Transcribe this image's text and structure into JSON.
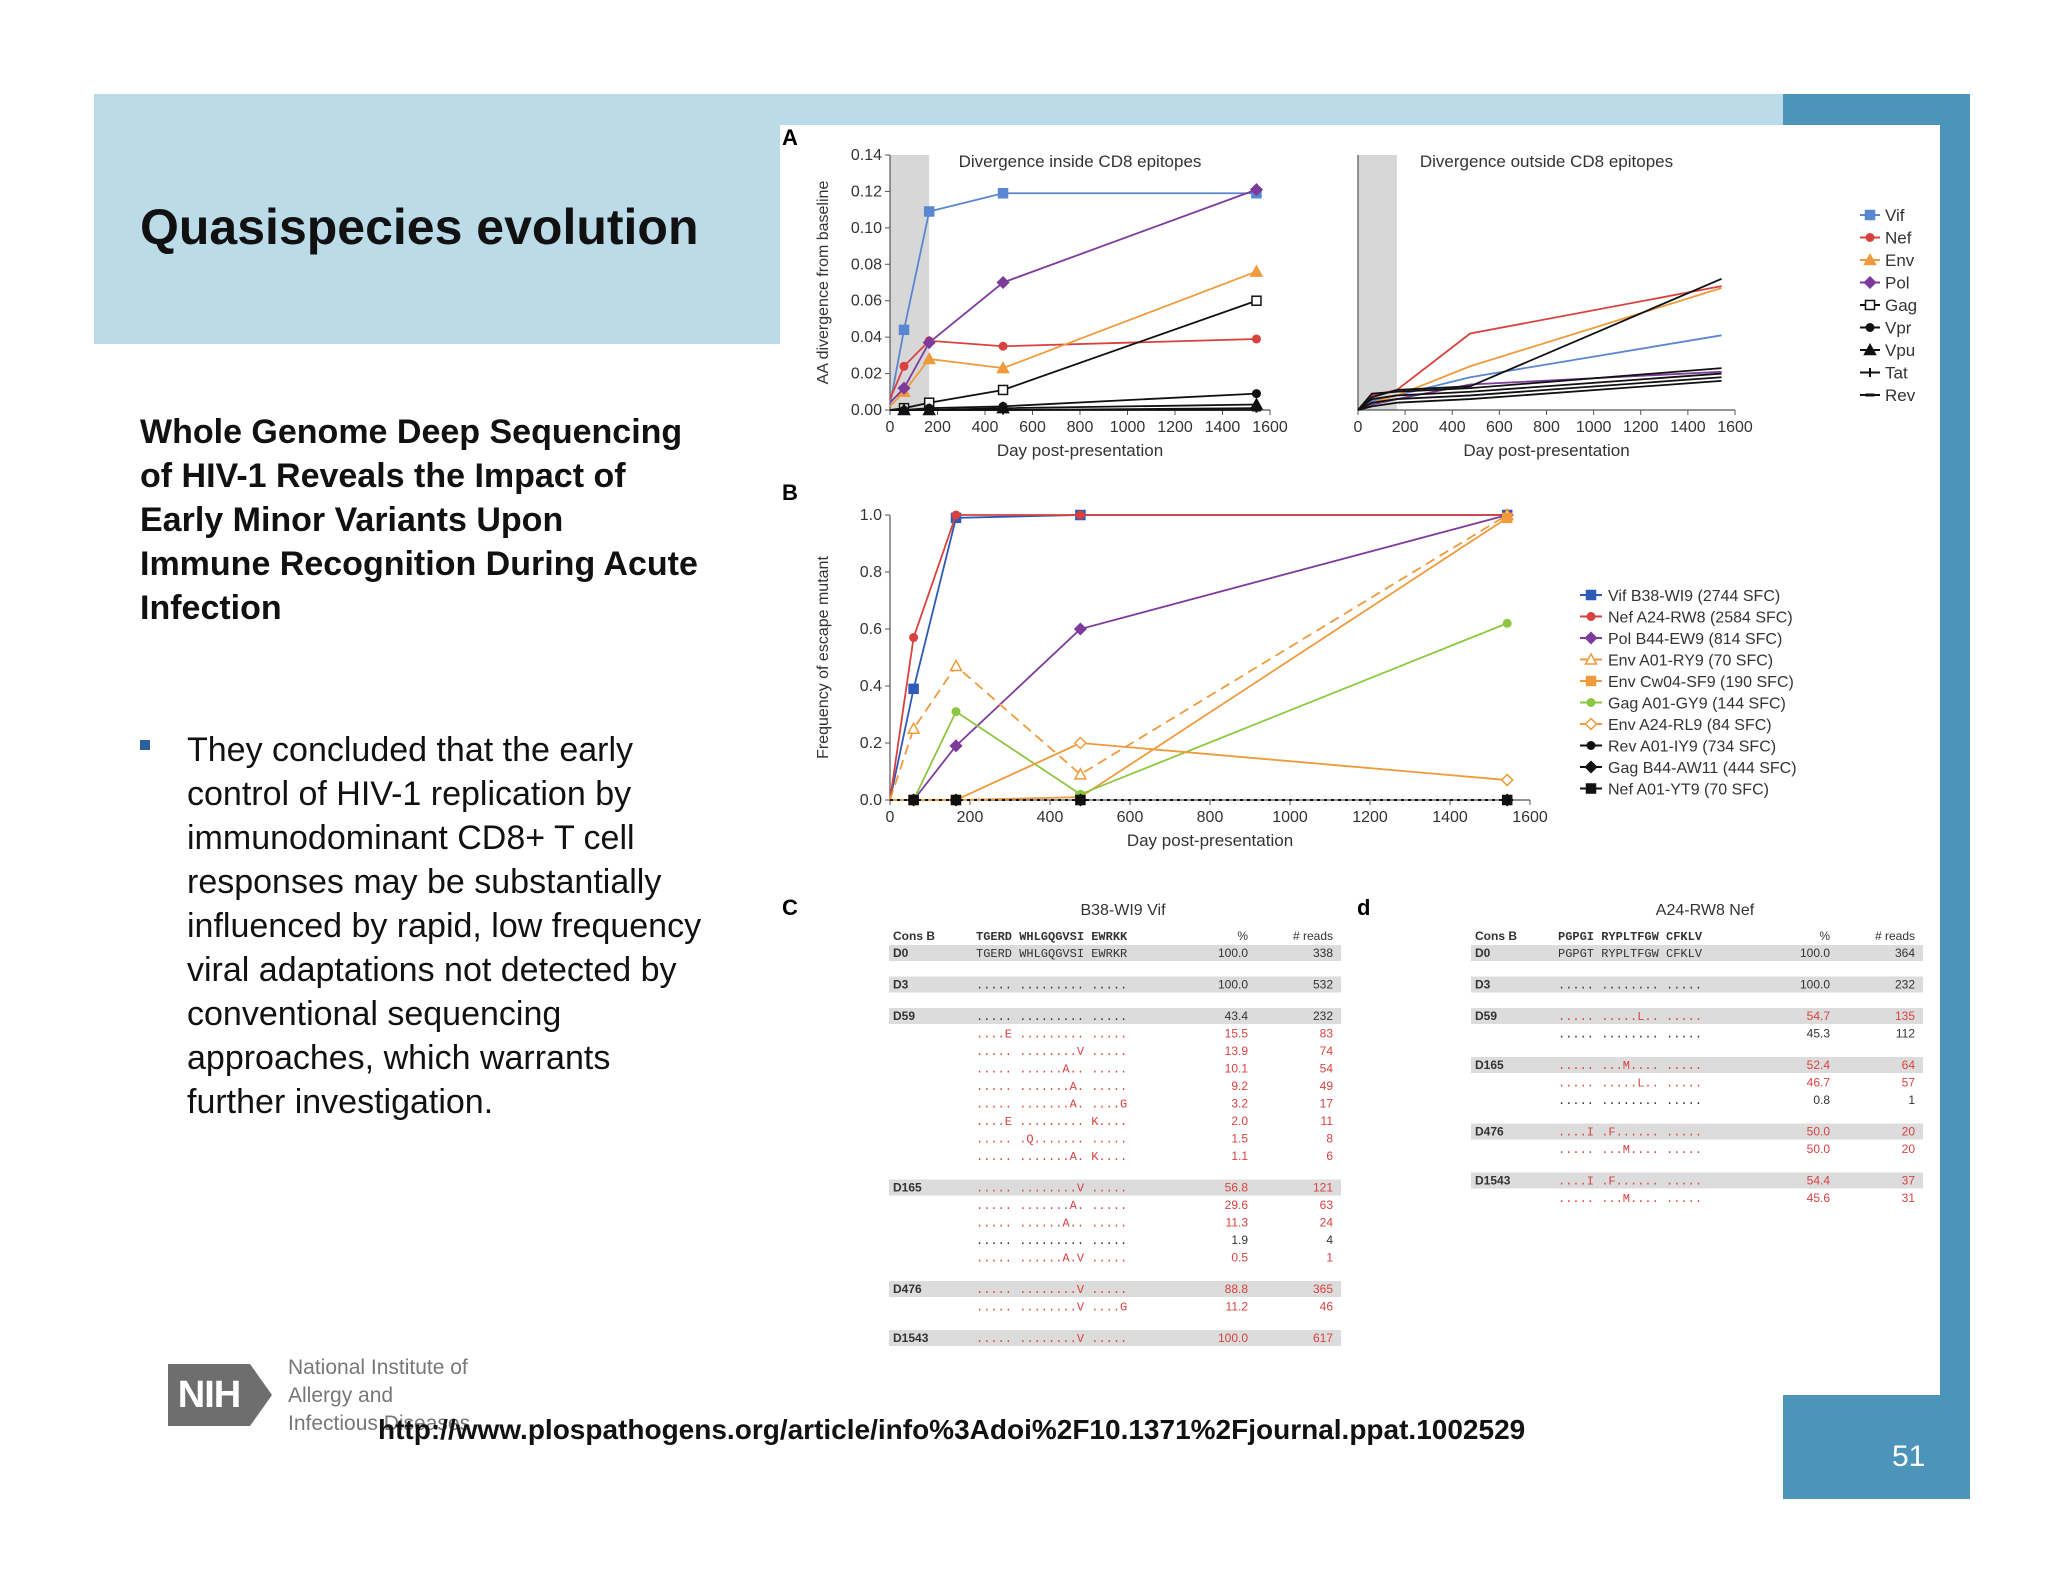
{
  "slide": {
    "title": "Quasispecies evolution",
    "paper_title": "Whole Genome Deep Sequencing of HIV-1 Reveals the Impact of Early Minor Variants Upon Immune Recognition During Acute Infection",
    "bullet": "They concluded that the early control of HIV-1 replication by immunodominant CD8+ T cell responses may be substantially influenced by rapid, low frequency viral adaptations not detected by conventional sequencing approaches, which warrants further investigation.",
    "url": "http://www.plospathogens.org/article/info%3Adoi%2F10.1371%2Fjournal.ppat.1002529",
    "page_number": "51",
    "logo": {
      "mark": "NIH",
      "line1": "National Institute of",
      "line2": "Allergy and",
      "line3": "Infectious Diseases"
    }
  },
  "colors": {
    "title_band": "#bcdbe9",
    "side_bar": "#4d94bb",
    "bullet": "#2a5fa0"
  },
  "chart_data": [
    {
      "panel": "A",
      "type": "line",
      "title": "Divergence inside CD8 epitopes",
      "xlabel": "Day post-presentation",
      "ylabel": "AA divergence from baseline",
      "xlim": [
        0,
        1600
      ],
      "ylim": [
        0,
        0.14
      ],
      "xticks": [
        "0",
        "200",
        "400",
        "600",
        "800",
        "1000",
        "1200",
        "1400",
        "1600"
      ],
      "yticks": [
        "0.00",
        "0.02",
        "0.04",
        "0.06",
        "0.08",
        "0.10",
        "0.12",
        "0.14"
      ],
      "shaded_x": [
        0,
        165
      ],
      "series": [
        {
          "name": "Vif",
          "color": "#5b86d1",
          "marker": "square",
          "x": [
            0,
            59,
            165,
            476,
            1543
          ],
          "y": [
            0.003,
            0.044,
            0.109,
            0.119,
            0.119
          ]
        },
        {
          "name": "Nef",
          "color": "#d9413f",
          "marker": "circle",
          "x": [
            0,
            59,
            165,
            476,
            1543
          ],
          "y": [
            0.006,
            0.024,
            0.038,
            0.035,
            0.039
          ]
        },
        {
          "name": "Env",
          "color": "#ef9a3c",
          "marker": "triangle",
          "x": [
            0,
            59,
            165,
            476,
            1543
          ],
          "y": [
            0.002,
            0.01,
            0.028,
            0.023,
            0.076
          ]
        },
        {
          "name": "Pol",
          "color": "#7d3b9c",
          "marker": "diamond",
          "x": [
            0,
            59,
            165,
            476,
            1543
          ],
          "y": [
            0.004,
            0.012,
            0.037,
            0.07,
            0.121
          ]
        },
        {
          "name": "Gag",
          "color": "#111111",
          "marker": "open-square",
          "x": [
            0,
            59,
            165,
            476,
            1543
          ],
          "y": [
            0,
            0.001,
            0.004,
            0.011,
            0.06
          ]
        },
        {
          "name": "Vpr",
          "color": "#111111",
          "marker": "circle",
          "x": [
            0,
            59,
            165,
            476,
            1543
          ],
          "y": [
            0,
            0,
            0.001,
            0.002,
            0.009
          ]
        },
        {
          "name": "Vpu",
          "color": "#111111",
          "marker": "triangle",
          "x": [
            0,
            59,
            165,
            476,
            1543
          ],
          "y": [
            0,
            0,
            0,
            0.001,
            0.003
          ]
        },
        {
          "name": "Tat",
          "color": "#111111",
          "marker": "plus",
          "x": [
            0,
            59,
            165,
            476,
            1543
          ],
          "y": [
            0,
            0,
            0,
            0,
            0.001
          ]
        },
        {
          "name": "Rev",
          "color": "#111111",
          "marker": "dash",
          "x": [
            0,
            59,
            165,
            476,
            1543
          ],
          "y": [
            0,
            0,
            0,
            0,
            0
          ]
        }
      ]
    },
    {
      "panel": "A-right",
      "type": "line",
      "title": "Divergence outside CD8 epitopes",
      "xlabel": "Day post-presentation",
      "xlim": [
        0,
        1600
      ],
      "ylim": [
        0,
        0.14
      ],
      "xticks": [
        "0",
        "200",
        "400",
        "600",
        "800",
        "1000",
        "1200",
        "1400",
        "1600"
      ],
      "shaded_x": [
        0,
        165
      ],
      "legend": [
        "Vif",
        "Nef",
        "Env",
        "Pol",
        "Gag",
        "Vpr",
        "Vpu",
        "Tat",
        "Rev"
      ],
      "series": [
        {
          "name": "Vif",
          "color": "#5b86d1",
          "x": [
            0,
            59,
            165,
            476,
            1543
          ],
          "y": [
            0,
            0.005,
            0.008,
            0.018,
            0.041
          ]
        },
        {
          "name": "Nef",
          "color": "#d9413f",
          "x": [
            0,
            59,
            165,
            476,
            1543
          ],
          "y": [
            0,
            0.008,
            0.011,
            0.042,
            0.068
          ]
        },
        {
          "name": "Env",
          "color": "#ef9a3c",
          "x": [
            0,
            59,
            165,
            476,
            1543
          ],
          "y": [
            0,
            0.004,
            0.008,
            0.024,
            0.067
          ]
        },
        {
          "name": "Pol",
          "color": "#7d3b9c",
          "x": [
            0,
            59,
            165,
            476,
            1543
          ],
          "y": [
            0,
            0.003,
            0.006,
            0.014,
            0.021
          ]
        },
        {
          "name": "Gag",
          "color": "#111111",
          "x": [
            0,
            59,
            165,
            476,
            1543
          ],
          "y": [
            0,
            0.007,
            0.011,
            0.013,
            0.072
          ]
        },
        {
          "name": "Vpr",
          "color": "#111111",
          "x": [
            0,
            59,
            165,
            476,
            1543
          ],
          "y": [
            0,
            0.009,
            0.01,
            0.012,
            0.023
          ]
        },
        {
          "name": "Vpu",
          "color": "#111111",
          "x": [
            0,
            59,
            165,
            476,
            1543
          ],
          "y": [
            0,
            0.006,
            0.008,
            0.01,
            0.02
          ]
        },
        {
          "name": "Tat",
          "color": "#111111",
          "x": [
            0,
            59,
            165,
            476,
            1543
          ],
          "y": [
            0,
            0.004,
            0.006,
            0.008,
            0.018
          ]
        },
        {
          "name": "Rev",
          "color": "#111111",
          "x": [
            0,
            59,
            165,
            476,
            1543
          ],
          "y": [
            0,
            0.002,
            0.004,
            0.006,
            0.016
          ]
        }
      ]
    },
    {
      "panel": "B",
      "type": "line",
      "xlabel": "Day post-presentation",
      "ylabel": "Frequency of escape mutant",
      "xlim": [
        0,
        1600
      ],
      "ylim": [
        0,
        1.0
      ],
      "xticks": [
        "0",
        "200",
        "400",
        "600",
        "800",
        "1000",
        "1200",
        "1400",
        "1600"
      ],
      "yticks": [
        "0.0",
        "0.2",
        "0.4",
        "0.6",
        "0.8",
        "1.0"
      ],
      "series": [
        {
          "name": "Vif B38-WI9 (2744 SFC)",
          "color": "#2d5ab8",
          "marker": "square",
          "x": [
            0,
            59,
            165,
            476,
            1543
          ],
          "y": [
            0,
            0.39,
            0.99,
            1.0,
            1.0
          ]
        },
        {
          "name": "Nef A24-RW8 (2584 SFC)",
          "color": "#d9413f",
          "marker": "circle",
          "x": [
            0,
            59,
            165,
            476,
            1543
          ],
          "y": [
            0,
            0.57,
            1.0,
            1.0,
            1.0
          ]
        },
        {
          "name": "Pol B44-EW9 (814 SFC)",
          "color": "#7d3b9c",
          "marker": "diamond",
          "x": [
            0,
            59,
            165,
            476,
            1543
          ],
          "y": [
            0,
            0,
            0.19,
            0.6,
            1.0
          ]
        },
        {
          "name": "Env A01-RY9 (70 SFC)",
          "color": "#ef9a3c",
          "marker": "open-triangle",
          "x": [
            0,
            59,
            165,
            476,
            1543
          ],
          "y": [
            0,
            0.25,
            0.47,
            0.09,
            1.0
          ]
        },
        {
          "name": "Env Cw04-SF9 (190 SFC)",
          "color": "#ef9a3c",
          "marker": "square",
          "x": [
            0,
            59,
            165,
            476,
            1543
          ],
          "y": [
            0,
            0,
            0,
            0.01,
            0.99
          ]
        },
        {
          "name": "Gag A01-GY9 (144 SFC)",
          "color": "#8dc63f",
          "marker": "circle",
          "x": [
            0,
            59,
            165,
            476,
            1543
          ],
          "y": [
            0,
            0,
            0.31,
            0.02,
            0.62
          ]
        },
        {
          "name": "Env A24-RL9 (84 SFC)",
          "color": "#ef9a3c",
          "marker": "open-diamond",
          "x": [
            0,
            59,
            165,
            476,
            1543
          ],
          "y": [
            0,
            0,
            0,
            0.2,
            0.07
          ]
        },
        {
          "name": "Rev A01-IY9 (734 SFC)",
          "color": "#111111",
          "marker": "circle",
          "x": [
            0,
            59,
            165,
            476,
            1543
          ],
          "y": [
            0,
            0,
            0,
            0,
            0
          ]
        },
        {
          "name": "Gag B44-AW11 (444 SFC)",
          "color": "#111111",
          "marker": "diamond",
          "x": [
            0,
            59,
            165,
            476,
            1543
          ],
          "y": [
            0,
            0,
            0,
            0,
            0
          ]
        },
        {
          "name": "Nef A01-YT9 (70 SFC)",
          "color": "#111111",
          "marker": "square",
          "x": [
            0,
            59,
            165,
            476,
            1543
          ],
          "y": [
            0,
            0,
            0,
            0,
            0
          ]
        }
      ]
    },
    {
      "panel": "C",
      "type": "table",
      "title": "B38-WI9 Vif",
      "header": {
        "label": "Cons B",
        "seq": "TGERD WHLGQGVSI EWRKK",
        "pct": "%",
        "reads": "# reads"
      },
      "rows": [
        {
          "label": "D0",
          "seq": "TGERD WHLGQGVSI EWRKR",
          "pct": "100.0",
          "reads": "338",
          "shaded": true,
          "red": false
        },
        {
          "label": "D3",
          "seq": "..... ......... .....",
          "pct": "100.0",
          "reads": "532",
          "shaded": true,
          "red": false
        },
        {
          "label": "D59",
          "seq": "..... ......... .....",
          "pct": "43.4",
          "reads": "232",
          "shaded": true,
          "red": false
        },
        {
          "label": "",
          "seq": "....E ......... .....",
          "pct": "15.5",
          "reads": "83",
          "shaded": false,
          "red": true
        },
        {
          "label": "",
          "seq": "..... ........V .....",
          "pct": "13.9",
          "reads": "74",
          "shaded": false,
          "red": true
        },
        {
          "label": "",
          "seq": "..... ......A.. .....",
          "pct": "10.1",
          "reads": "54",
          "shaded": false,
          "red": true
        },
        {
          "label": "",
          "seq": "..... .......A. .....",
          "pct": "9.2",
          "reads": "49",
          "shaded": false,
          "red": true
        },
        {
          "label": "",
          "seq": "..... .......A. ....G",
          "pct": "3.2",
          "reads": "17",
          "shaded": false,
          "red": true
        },
        {
          "label": "",
          "seq": "....E ......... K....",
          "pct": "2.0",
          "reads": "11",
          "shaded": false,
          "red": true
        },
        {
          "label": "",
          "seq": "..... .Q....... .....",
          "pct": "1.5",
          "reads": "8",
          "shaded": false,
          "red": true
        },
        {
          "label": "",
          "seq": "..... .......A. K....",
          "pct": "1.1",
          "reads": "6",
          "shaded": false,
          "red": true
        },
        {
          "label": "D165",
          "seq": "..... ........V .....",
          "pct": "56.8",
          "reads": "121",
          "shaded": true,
          "red": true
        },
        {
          "label": "",
          "seq": "..... .......A. .....",
          "pct": "29.6",
          "reads": "63",
          "shaded": false,
          "red": true
        },
        {
          "label": "",
          "seq": "..... ......A.. .....",
          "pct": "11.3",
          "reads": "24",
          "shaded": false,
          "red": true
        },
        {
          "label": "",
          "seq": "..... ......... .....",
          "pct": "1.9",
          "reads": "4",
          "shaded": false,
          "red": false
        },
        {
          "label": "",
          "seq": "..... ......A.V .....",
          "pct": "0.5",
          "reads": "1",
          "shaded": false,
          "red": true
        },
        {
          "label": "D476",
          "seq": "..... ........V .....",
          "pct": "88.8",
          "reads": "365",
          "shaded": true,
          "red": true
        },
        {
          "label": "",
          "seq": "..... ........V ....G",
          "pct": "11.2",
          "reads": "46",
          "shaded": false,
          "red": true
        },
        {
          "label": "D1543",
          "seq": "..... ........V .....",
          "pct": "100.0",
          "reads": "617",
          "shaded": true,
          "red": true
        }
      ]
    },
    {
      "panel": "d",
      "type": "table",
      "title": "A24-RW8 Nef",
      "header": {
        "label": "Cons B",
        "seq": "PGPGI RYPLTFGW CFKLV",
        "pct": "%",
        "reads": "# reads"
      },
      "rows": [
        {
          "label": "D0",
          "seq": "PGPGT RYPLTFGW CFKLV",
          "pct": "100.0",
          "reads": "364",
          "shaded": true,
          "red": false
        },
        {
          "label": "D3",
          "seq": "..... ........ .....",
          "pct": "100.0",
          "reads": "232",
          "shaded": true,
          "red": false
        },
        {
          "label": "D59",
          "seq": "..... .....L.. .....",
          "pct": "54.7",
          "reads": "135",
          "shaded": true,
          "red": true
        },
        {
          "label": "",
          "seq": "..... ........ .....",
          "pct": "45.3",
          "reads": "112",
          "shaded": false,
          "red": false
        },
        {
          "label": "D165",
          "seq": "..... ...M.... .....",
          "pct": "52.4",
          "reads": "64",
          "shaded": true,
          "red": true
        },
        {
          "label": "",
          "seq": "..... .....L.. .....",
          "pct": "46.7",
          "reads": "57",
          "shaded": false,
          "red": true
        },
        {
          "label": "",
          "seq": "..... ........ .....",
          "pct": "0.8",
          "reads": "1",
          "shaded": false,
          "red": false
        },
        {
          "label": "D476",
          "seq": "....I .F...... .....",
          "pct": "50.0",
          "reads": "20",
          "shaded": true,
          "red": true
        },
        {
          "label": "",
          "seq": "..... ...M.... .....",
          "pct": "50.0",
          "reads": "20",
          "shaded": false,
          "red": true
        },
        {
          "label": "D1543",
          "seq": "....I .F...... .....",
          "pct": "54.4",
          "reads": "37",
          "shaded": true,
          "red": true
        },
        {
          "label": "",
          "seq": "..... ...M.... .....",
          "pct": "45.6",
          "reads": "31",
          "shaded": false,
          "red": true
        }
      ]
    }
  ],
  "panel_letters": [
    "A",
    "B",
    "C",
    "d"
  ]
}
